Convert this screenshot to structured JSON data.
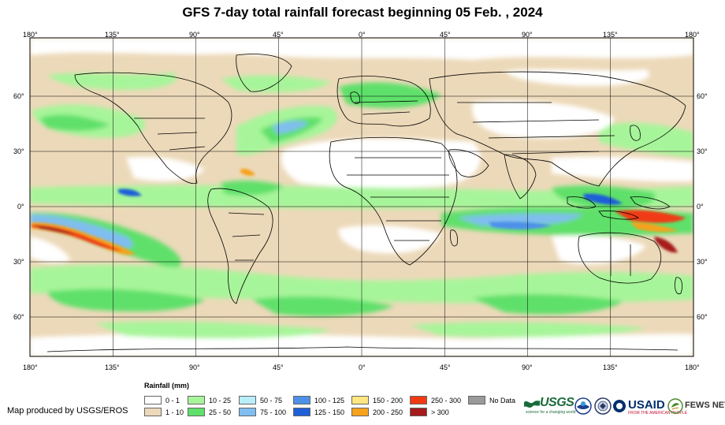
{
  "title": "GFS 7-day total rainfall forecast beginning 05 Feb. , 2024",
  "map": {
    "longitude_labels": [
      "180°",
      "135°",
      "90°",
      "45°",
      "0°",
      "45°",
      "90°",
      "135°",
      "180°"
    ],
    "latitude_labels": [
      "60°",
      "30°",
      "0°",
      "30°",
      "60°"
    ],
    "colors": {
      "ocean_background": "#ffffff",
      "boundaries": "#000000",
      "graticule": "#000000"
    }
  },
  "legend": {
    "title": "Rainfall (mm)",
    "items": [
      {
        "label": "0 - 1",
        "color": "#ffffff"
      },
      {
        "label": "1 - 10",
        "color": "#ecd9b9"
      },
      {
        "label": "10 - 25",
        "color": "#a7f59a"
      },
      {
        "label": "25 - 50",
        "color": "#5fe06b"
      },
      {
        "label": "50 - 75",
        "color": "#b7eefa"
      },
      {
        "label": "75 - 100",
        "color": "#80bdf0"
      },
      {
        "label": "100 - 125",
        "color": "#4d90e8"
      },
      {
        "label": "125 - 150",
        "color": "#1f5fd8"
      },
      {
        "label": "150 - 200",
        "color": "#ffe680"
      },
      {
        "label": "200 - 250",
        "color": "#f7a21b"
      },
      {
        "label": "250 - 300",
        "color": "#f03a14"
      },
      {
        "label": "> 300",
        "color": "#a51b1b"
      },
      {
        "label": "No Data",
        "color": "#9a9a9a"
      }
    ]
  },
  "credit": "Map produced by USGS/EROS",
  "logos": {
    "usgs": {
      "name": "USGS",
      "tagline": "science for a changing world"
    },
    "noaa": {
      "icon": "noaa-seal-icon"
    },
    "state_dept": {
      "icon": "state-department-seal-icon"
    },
    "usaid": {
      "name": "USAID",
      "tagline": "FROM THE AMERICAN PEOPLE"
    },
    "fews": {
      "name": "FEWS NET"
    }
  }
}
